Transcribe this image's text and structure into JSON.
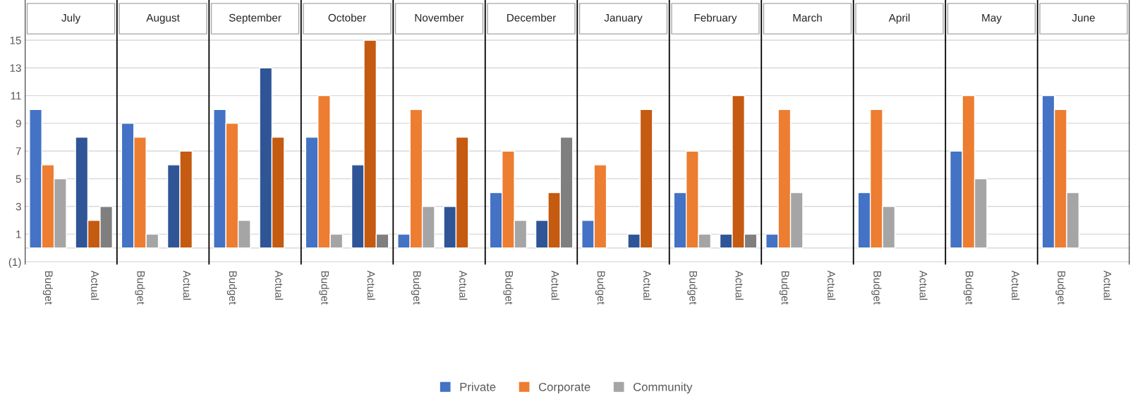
{
  "chart_data": {
    "type": "bar",
    "categories": [
      "Budget",
      "Actual",
      "Budget",
      "Actual",
      "Budget",
      "Actual",
      "Budget",
      "Actual",
      "Budget",
      "Actual",
      "Budget",
      "Actual",
      "Budget",
      "Actual",
      "Budget",
      "Actual",
      "Budget",
      "Actual",
      "Budget",
      "Actual",
      "Budget",
      "Actual",
      "Budget",
      "Actual"
    ],
    "annotations": [
      "July",
      "August",
      "September",
      "October",
      "November",
      "December",
      "January",
      "February",
      "March",
      "April",
      "May",
      "June"
    ],
    "series": [
      {
        "name": "Private",
        "color": "#4472c4",
        "colors": [
          "#4472c4",
          "#2f5597",
          "#4472c4",
          "#2f5597",
          "#4472c4",
          "#2f5597",
          "#4472c4",
          "#2f5597",
          "#4472c4",
          "#2f5597",
          "#4472c4",
          "#2f5597",
          "#4472c4",
          "#2f5597",
          "#4472c4",
          "#2f5597",
          "#4472c4",
          "#2f5597",
          "#4472c4",
          "#2f5597",
          "#4472c4",
          "#2f5597",
          "#4472c4",
          "#2f5597"
        ],
        "values": [
          10,
          8,
          9,
          6,
          10,
          13,
          8,
          6,
          1,
          3,
          4,
          2,
          2,
          1,
          4,
          1,
          1,
          null,
          4,
          null,
          7,
          null,
          11,
          null
        ]
      },
      {
        "name": "Corporate",
        "color": "#ed7d31",
        "colors": [
          "#ed7d31",
          "#c55a11",
          "#ed7d31",
          "#c55a11",
          "#ed7d31",
          "#c55a11",
          "#ed7d31",
          "#c55a11",
          "#ed7d31",
          "#c55a11",
          "#ed7d31",
          "#c55a11",
          "#ed7d31",
          "#c55a11",
          "#ed7d31",
          "#c55a11",
          "#ed7d31",
          "#c55a11",
          "#ed7d31",
          "#c55a11",
          "#ed7d31",
          "#c55a11",
          "#ed7d31",
          "#c55a11"
        ],
        "values": [
          6,
          2,
          8,
          7,
          9,
          8,
          11,
          15,
          10,
          8,
          7,
          4,
          6,
          10,
          7,
          11,
          10,
          null,
          10,
          null,
          11,
          null,
          10,
          null
        ]
      },
      {
        "name": "Community",
        "color": "#a5a5a5",
        "colors": [
          "#a5a5a5",
          "#7f7f7f",
          "#a5a5a5",
          "#7f7f7f",
          "#a5a5a5",
          "#7f7f7f",
          "#a5a5a5",
          "#7f7f7f",
          "#a5a5a5",
          "#7f7f7f",
          "#a5a5a5",
          "#7f7f7f",
          "#a5a5a5",
          "#7f7f7f",
          "#a5a5a5",
          "#7f7f7f",
          "#a5a5a5",
          "#7f7f7f",
          "#a5a5a5",
          "#7f7f7f",
          "#a5a5a5",
          "#7f7f7f",
          "#a5a5a5",
          "#7f7f7f"
        ],
        "values": [
          5,
          3,
          1,
          null,
          2,
          null,
          1,
          1,
          3,
          null,
          2,
          8,
          null,
          null,
          1,
          1,
          4,
          null,
          3,
          null,
          5,
          null,
          4,
          null
        ]
      }
    ],
    "ylim": [
      -1.2,
      17.9
    ],
    "yticks": [
      {
        "value": -1,
        "label": "(1)"
      },
      1,
      3,
      5,
      7,
      9,
      11,
      13,
      15
    ],
    "grid": "y",
    "legend": "bottom"
  }
}
